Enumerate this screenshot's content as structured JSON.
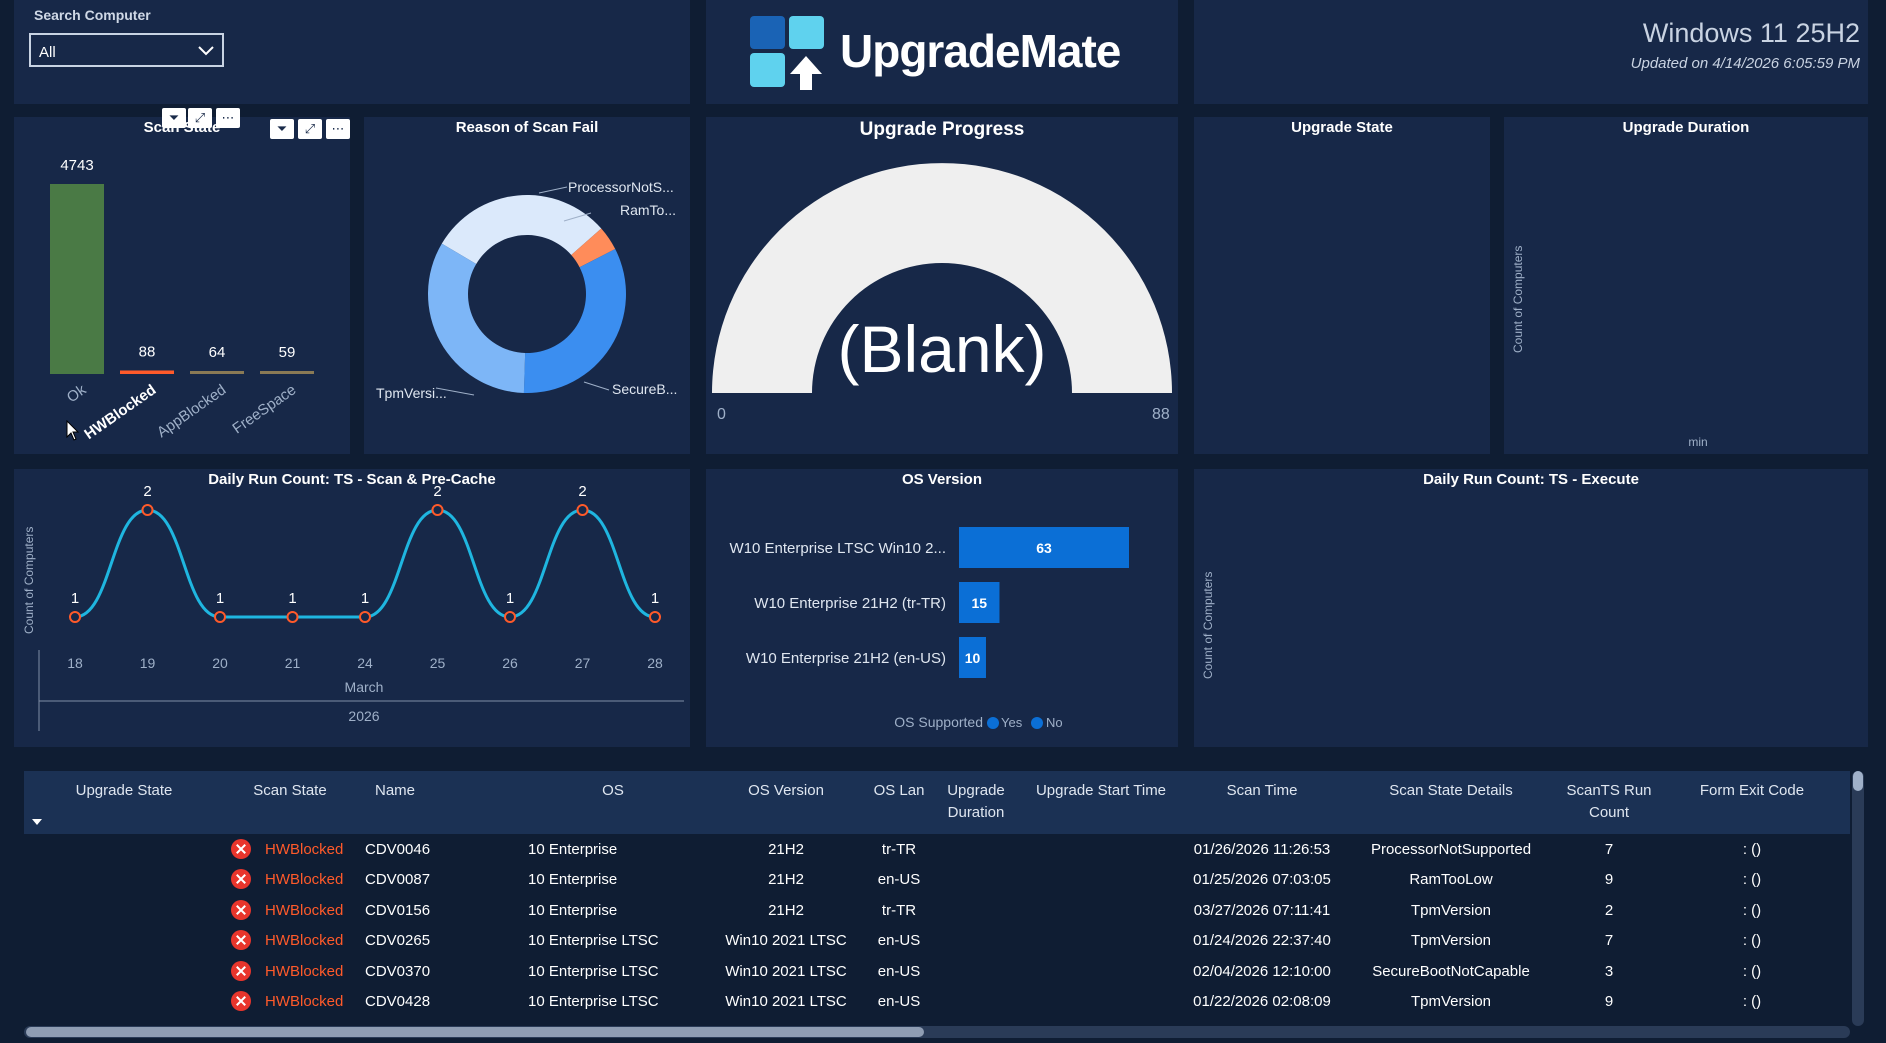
{
  "search": {
    "label": "Search Computer",
    "value": "All"
  },
  "logo": {
    "text": "UpgradeMate"
  },
  "header": {
    "title": "Windows 11 25H2",
    "updated": "Updated on 4/14/2026 6:05:59 PM"
  },
  "scan_state": {
    "title": "Scan State",
    "chart_data": {
      "type": "bar",
      "categories": [
        "Ok",
        "HWBlocked",
        "AppBlocked",
        "FreeSpace"
      ],
      "values": [
        4743,
        88,
        64,
        59
      ]
    }
  },
  "scan_fail": {
    "title": "Reason of Scan Fail",
    "labels": [
      "ProcessorNotS...",
      "RamTo...",
      "SecureB...",
      "TpmVersi..."
    ],
    "chart_data": {
      "type": "pie",
      "categories": [
        "ProcessorNotSupported",
        "RamTooLow",
        "SecureBootNotCapable",
        "TpmVersion"
      ],
      "values": [
        30,
        4,
        33,
        33
      ]
    }
  },
  "upgrade_progress": {
    "title": "Upgrade Progress",
    "value": "(Blank)",
    "min": "0",
    "max": "88"
  },
  "upgrade_state": {
    "title": "Upgrade State"
  },
  "upgrade_duration": {
    "title": "Upgrade Duration",
    "ylabel": "Count of Computers",
    "xlabel": "min"
  },
  "daily_scan": {
    "title": "Daily Run Count: TS - Scan & Pre-Cache",
    "ylabel": "Count of Computers",
    "month": "March",
    "year": "2026",
    "chart_data": {
      "type": "line",
      "x": [
        "18",
        "19",
        "20",
        "21",
        "24",
        "25",
        "26",
        "27",
        "28"
      ],
      "values": [
        1,
        2,
        1,
        1,
        1,
        2,
        1,
        2,
        1
      ]
    }
  },
  "os_version": {
    "title": "OS Version",
    "legend_title": "OS Supported",
    "legend": [
      "Yes",
      "No"
    ],
    "chart_data": {
      "type": "bar",
      "categories": [
        "W10 Enterprise LTSC Win10 2...",
        "W10 Enterprise 21H2 (tr-TR)",
        "W10 Enterprise 21H2 (en-US)"
      ],
      "values": [
        63,
        15,
        10
      ]
    }
  },
  "daily_execute": {
    "title": "Daily Run Count: TS - Execute",
    "ylabel": "Count of Computers"
  },
  "table": {
    "headers": [
      "Upgrade State",
      "Scan State",
      "Name",
      "OS",
      "OS Version",
      "OS Lan",
      "Upgrade Duration",
      "Upgrade Start Time",
      "Scan Time",
      "Scan State Details",
      "ScanTS Run Count",
      "Form Exit Code"
    ],
    "rows": [
      {
        "scan_state": "HWBlocked",
        "name": "CDV0046",
        "os": "10 Enterprise",
        "os_version": "21H2",
        "os_lan": "tr-TR",
        "scan_time": "01/26/2026 11:26:53",
        "details": "ProcessorNotSupported",
        "run_count": "7",
        "exit": ": ()"
      },
      {
        "scan_state": "HWBlocked",
        "name": "CDV0087",
        "os": "10 Enterprise",
        "os_version": "21H2",
        "os_lan": "en-US",
        "scan_time": "01/25/2026 07:03:05",
        "details": "RamTooLow",
        "run_count": "9",
        "exit": ": ()"
      },
      {
        "scan_state": "HWBlocked",
        "name": "CDV0156",
        "os": "10 Enterprise",
        "os_version": "21H2",
        "os_lan": "tr-TR",
        "scan_time": "03/27/2026 07:11:41",
        "details": "TpmVersion",
        "run_count": "2",
        "exit": ": ()"
      },
      {
        "scan_state": "HWBlocked",
        "name": "CDV0265",
        "os": "10 Enterprise LTSC",
        "os_version": "Win10 2021 LTSC",
        "os_lan": "en-US",
        "scan_time": "01/24/2026 22:37:40",
        "details": "TpmVersion",
        "run_count": "7",
        "exit": ": ()"
      },
      {
        "scan_state": "HWBlocked",
        "name": "CDV0370",
        "os": "10 Enterprise LTSC",
        "os_version": "Win10 2021 LTSC",
        "os_lan": "en-US",
        "scan_time": "02/04/2026 12:10:00",
        "details": "SecureBootNotCapable",
        "run_count": "3",
        "exit": ": ()"
      },
      {
        "scan_state": "HWBlocked",
        "name": "CDV0428",
        "os": "10 Enterprise LTSC",
        "os_version": "Win10 2021 LTSC",
        "os_lan": "en-US",
        "scan_time": "01/22/2026 02:08:09",
        "details": "TpmVersion",
        "run_count": "9",
        "exit": ": ()"
      }
    ]
  },
  "colors": {
    "bg": "#0f1d33",
    "card": "#172848",
    "ok_bar": "#4a7a45",
    "hwblocked": "#ff5a2a",
    "line": "#1fb6e0",
    "bar_blue": "#0b6fd6",
    "error": "#e8352c"
  }
}
